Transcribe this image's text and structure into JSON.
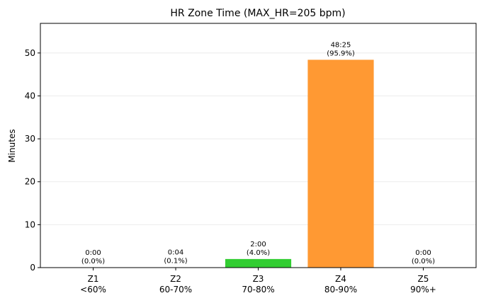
{
  "chart_data": {
    "type": "bar",
    "title": "HR Zone Time (MAX_HR=205 bpm)",
    "y_label": "Minutes",
    "categories": [
      [
        "Z1",
        "<60%"
      ],
      [
        "Z2",
        "60-70%"
      ],
      [
        "Z3",
        "70-80%"
      ],
      [
        "Z4",
        "80-90%"
      ],
      [
        "Z5",
        "90%+"
      ]
    ],
    "values": [
      0,
      0.0667,
      2.0,
      48.4167,
      0
    ],
    "value_labels": [
      [
        "0:00",
        "(0.0%)"
      ],
      [
        "0:04",
        "(0.1%)"
      ],
      [
        "2:00",
        "(4.0%)"
      ],
      [
        "48:25",
        "(95.9%)"
      ],
      [
        "0:00",
        "(0.0%)"
      ]
    ],
    "colors": [
      "#87ceeb",
      "#1e90ff",
      "#32cd32",
      "#ff9933",
      "#ff4444"
    ],
    "ylim": [
      0,
      56.9
    ],
    "yticks": [
      0,
      10,
      20,
      30,
      40,
      50
    ],
    "grid": true
  }
}
